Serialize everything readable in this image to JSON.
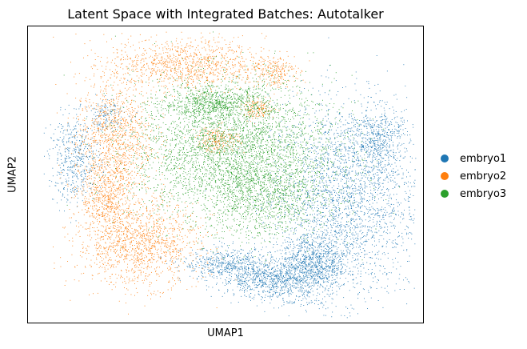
{
  "chart_data": {
    "type": "scatter",
    "title": "Latent Space with Integrated Batches: Autotalker",
    "xlabel": "UMAP1",
    "ylabel": "UMAP2",
    "xticks": [],
    "yticks": [],
    "grid": false,
    "legend_position": "right",
    "series": [
      {
        "name": "embryo1",
        "color": "#1f77b4",
        "regions": [
          {
            "cx": 0.8,
            "cy": 0.42,
            "rx": 0.17,
            "ry": 0.3,
            "n": 2600
          },
          {
            "cx": 0.72,
            "cy": 0.2,
            "rx": 0.08,
            "ry": 0.1,
            "n": 900
          },
          {
            "cx": 0.62,
            "cy": 0.15,
            "rx": 0.12,
            "ry": 0.06,
            "n": 900
          },
          {
            "cx": 0.5,
            "cy": 0.2,
            "rx": 0.1,
            "ry": 0.05,
            "n": 500
          },
          {
            "cx": 0.12,
            "cy": 0.55,
            "rx": 0.06,
            "ry": 0.13,
            "n": 500
          },
          {
            "cx": 0.88,
            "cy": 0.62,
            "rx": 0.06,
            "ry": 0.1,
            "n": 500
          },
          {
            "cx": 0.2,
            "cy": 0.7,
            "rx": 0.05,
            "ry": 0.05,
            "n": 150
          }
        ]
      },
      {
        "name": "embryo2",
        "color": "#ff7f0e",
        "regions": [
          {
            "cx": 0.4,
            "cy": 0.87,
            "rx": 0.18,
            "ry": 0.08,
            "n": 1100
          },
          {
            "cx": 0.22,
            "cy": 0.62,
            "rx": 0.09,
            "ry": 0.18,
            "n": 1100
          },
          {
            "cx": 0.28,
            "cy": 0.27,
            "rx": 0.14,
            "ry": 0.13,
            "n": 1400
          },
          {
            "cx": 0.2,
            "cy": 0.42,
            "rx": 0.06,
            "ry": 0.1,
            "n": 500
          },
          {
            "cx": 0.48,
            "cy": 0.62,
            "rx": 0.05,
            "ry": 0.04,
            "n": 220
          },
          {
            "cx": 0.58,
            "cy": 0.72,
            "rx": 0.04,
            "ry": 0.03,
            "n": 160
          },
          {
            "cx": 0.62,
            "cy": 0.85,
            "rx": 0.05,
            "ry": 0.05,
            "n": 220
          }
        ]
      },
      {
        "name": "embryo3",
        "color": "#2ca02c",
        "regions": [
          {
            "cx": 0.52,
            "cy": 0.58,
            "rx": 0.23,
            "ry": 0.22,
            "n": 3800
          },
          {
            "cx": 0.47,
            "cy": 0.74,
            "rx": 0.12,
            "ry": 0.05,
            "n": 700
          },
          {
            "cx": 0.6,
            "cy": 0.42,
            "rx": 0.14,
            "ry": 0.12,
            "n": 800
          }
        ]
      }
    ]
  }
}
